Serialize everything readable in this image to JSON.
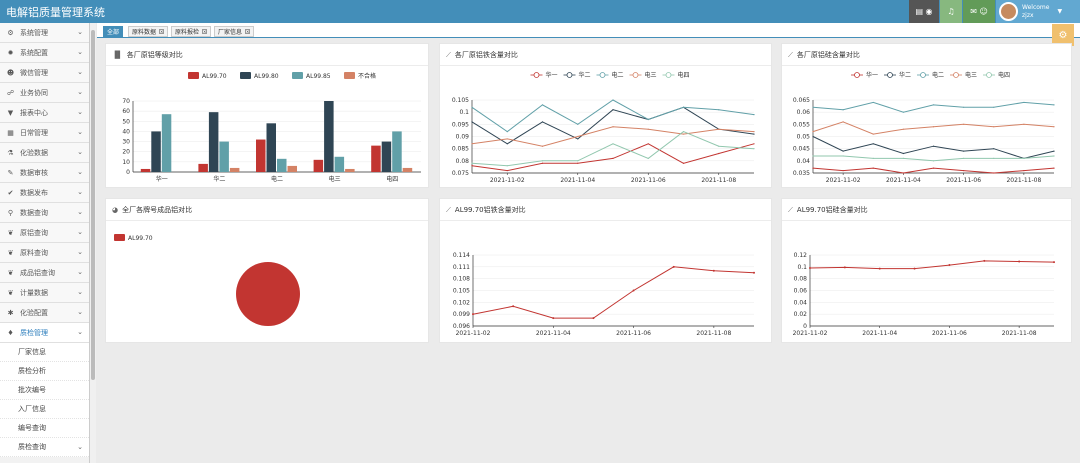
{
  "header": {
    "app_title": "电解铝质量管理系统",
    "welcome": "Welcome",
    "username": "zjzx"
  },
  "sidebar": {
    "items": [
      {
        "label": "系统管理",
        "icon": "gears-icon",
        "glyph": "⚙"
      },
      {
        "label": "系统配置",
        "icon": "cog-icon",
        "glyph": "✹"
      },
      {
        "label": "微信管理",
        "icon": "wechat-icon",
        "glyph": "☻"
      },
      {
        "label": "业务协同",
        "icon": "sitemap-icon",
        "glyph": "☍"
      },
      {
        "label": "报表中心",
        "icon": "filter-icon",
        "glyph": "▼"
      },
      {
        "label": "日常管理",
        "icon": "calendar-icon",
        "glyph": "▦"
      },
      {
        "label": "化验数据",
        "icon": "flask-icon",
        "glyph": "⚗"
      },
      {
        "label": "数据审核",
        "icon": "edit-icon",
        "glyph": "✎"
      },
      {
        "label": "数据发布",
        "icon": "check-icon",
        "glyph": "✔"
      },
      {
        "label": "数据查询",
        "icon": "search-icon",
        "glyph": "⚲"
      },
      {
        "label": "原铝查询",
        "icon": "leaf-icon",
        "glyph": "❦"
      },
      {
        "label": "原料查询",
        "icon": "leaf-icon",
        "glyph": "❦"
      },
      {
        "label": "成品铝查询",
        "icon": "leaf-icon",
        "glyph": "❦"
      },
      {
        "label": "计量数据",
        "icon": "leaf-icon",
        "glyph": "❦"
      },
      {
        "label": "化验配置",
        "icon": "asterisk-icon",
        "glyph": "✱"
      },
      {
        "label": "质检管理",
        "icon": "tint-icon",
        "glyph": "♦"
      }
    ],
    "sub_items": [
      "厂家信息",
      "质检分析",
      "批次编号",
      "入厂信息",
      "编号查询",
      "质检查询"
    ]
  },
  "tabs": [
    {
      "label": "全部"
    },
    {
      "label": "原料数据"
    },
    {
      "label": "原料报检"
    },
    {
      "label": "厂家信息"
    }
  ],
  "colors": {
    "header": "#438eb9",
    "red": "#c23531",
    "navy": "#2f4554",
    "teal": "#61a0a8",
    "salmon": "#d48265",
    "pale": "#91c7ae"
  },
  "panels": {
    "grade": {
      "title": "各厂原铝等级对比",
      "chart_data": {
        "type": "bar",
        "categories": [
          "华一",
          "华二",
          "电二",
          "电三",
          "电四"
        ],
        "series": [
          {
            "name": "AL99.70",
            "values": [
              3,
              8,
              32,
              12,
              26
            ]
          },
          {
            "name": "AL99.80",
            "values": [
              40,
              59,
              48,
              70,
              30
            ]
          },
          {
            "name": "AL99.85",
            "values": [
              57,
              30,
              13,
              15,
              40
            ]
          },
          {
            "name": "不合格",
            "values": [
              0,
              4,
              6,
              3,
              4
            ]
          }
        ],
        "ylim": [
          0,
          70
        ],
        "yticks": [
          0,
          10,
          20,
          30,
          40,
          50,
          60,
          70
        ]
      }
    },
    "fe": {
      "title": "各厂原铝铁含量对比",
      "chart_data": {
        "type": "line",
        "x": [
          "2021-11-01",
          "2021-11-02",
          "2021-11-03",
          "2021-11-04",
          "2021-11-05",
          "2021-11-06",
          "2021-11-07",
          "2021-11-08",
          "2021-11-09"
        ],
        "xticks": [
          "2021-11-02",
          "2021-11-04",
          "2021-11-06",
          "2021-11-08"
        ],
        "series": [
          {
            "name": "华一",
            "values": [
              0.078,
              0.076,
              0.079,
              0.079,
              0.081,
              0.087,
              0.079,
              0.083,
              0.087
            ]
          },
          {
            "name": "华二",
            "values": [
              0.096,
              0.087,
              0.096,
              0.089,
              0.101,
              0.097,
              0.102,
              0.093,
              0.091
            ]
          },
          {
            "name": "电二",
            "values": [
              0.102,
              0.092,
              0.103,
              0.095,
              0.105,
              0.097,
              0.102,
              0.101,
              0.099
            ]
          },
          {
            "name": "电三",
            "values": [
              0.087,
              0.089,
              0.086,
              0.09,
              0.094,
              0.093,
              0.091,
              0.093,
              0.092
            ]
          },
          {
            "name": "电四",
            "values": [
              0.079,
              0.078,
              0.08,
              0.08,
              0.087,
              0.081,
              0.092,
              0.086,
              0.085
            ]
          }
        ],
        "ylim": [
          0.075,
          0.105
        ],
        "yticks": [
          "0.075",
          "0.08",
          "0.085",
          "0.09",
          "0.095",
          "0.1",
          "0.105"
        ]
      }
    },
    "si": {
      "title": "各厂原铝硅含量对比",
      "chart_data": {
        "type": "line",
        "x": [
          "2021-11-01",
          "2021-11-02",
          "2021-11-03",
          "2021-11-04",
          "2021-11-05",
          "2021-11-06",
          "2021-11-07",
          "2021-11-08",
          "2021-11-09"
        ],
        "xticks": [
          "2021-11-02",
          "2021-11-04",
          "2021-11-06",
          "2021-11-08"
        ],
        "series": [
          {
            "name": "华一",
            "values": [
              0.037,
              0.036,
              0.037,
              0.035,
              0.037,
              0.036,
              0.035,
              0.036,
              0.037
            ]
          },
          {
            "name": "华二",
            "values": [
              0.05,
              0.044,
              0.047,
              0.043,
              0.046,
              0.044,
              0.045,
              0.041,
              0.044
            ]
          },
          {
            "name": "电二",
            "values": [
              0.062,
              0.061,
              0.064,
              0.06,
              0.063,
              0.062,
              0.062,
              0.064,
              0.063
            ]
          },
          {
            "name": "电三",
            "values": [
              0.052,
              0.056,
              0.051,
              0.053,
              0.054,
              0.055,
              0.054,
              0.055,
              0.054
            ]
          },
          {
            "name": "电四",
            "values": [
              0.042,
              0.042,
              0.041,
              0.041,
              0.04,
              0.041,
              0.041,
              0.041,
              0.042
            ]
          }
        ],
        "ylim": [
          0.035,
          0.065
        ],
        "yticks": [
          "0.035",
          "0.04",
          "0.045",
          "0.05",
          "0.055",
          "0.06",
          "0.065"
        ]
      }
    },
    "pie": {
      "title": "全厂各牌号成品铝对比",
      "chart_data": {
        "type": "pie",
        "slices": [
          {
            "name": "AL99.70",
            "value": 1
          }
        ]
      }
    },
    "fe70": {
      "title": "AL99.70铝铁含量对比",
      "chart_data": {
        "type": "line",
        "x": [
          "2021-11-02",
          "2021-11-03",
          "2021-11-04",
          "2021-11-05",
          "2021-11-06",
          "2021-11-07",
          "2021-11-08",
          "2021-11-09"
        ],
        "xticks": [
          "2021-11-02",
          "2021-11-04",
          "2021-11-06",
          "2021-11-08"
        ],
        "series": [
          {
            "name": "AL99.70",
            "values": [
              0.099,
              0.101,
              0.098,
              0.098,
              0.105,
              0.111,
              0.11,
              0.1095
            ]
          }
        ],
        "ylim": [
          0.096,
          0.114
        ],
        "yticks": [
          "0.096",
          "0.099",
          "0.102",
          "0.105",
          "0.108",
          "0.111",
          "0.114"
        ]
      }
    },
    "si70": {
      "title": "AL99.70铝硅含量对比",
      "chart_data": {
        "type": "line",
        "x": [
          "2021-11-02",
          "2021-11-03",
          "2021-11-04",
          "2021-11-05",
          "2021-11-06",
          "2021-11-07",
          "2021-11-08",
          "2021-11-09"
        ],
        "xticks": [
          "2021-11-02",
          "2021-11-04",
          "2021-11-06",
          "2021-11-08"
        ],
        "series": [
          {
            "name": "AL99.70",
            "values": [
              0.098,
              0.099,
              0.097,
              0.097,
              0.103,
              0.11,
              0.109,
              0.108
            ]
          }
        ],
        "ylim": [
          0,
          0.12
        ],
        "yticks": [
          "0",
          "0.02",
          "0.04",
          "0.06",
          "0.08",
          "0.1",
          "0.12"
        ]
      }
    }
  }
}
